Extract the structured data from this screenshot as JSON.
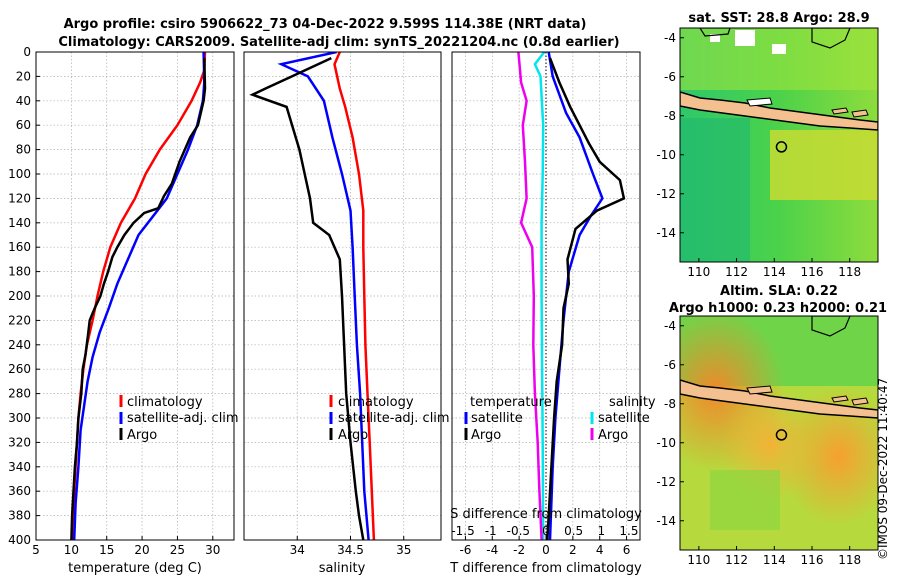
{
  "title_line1": "Argo profile: csiro 5906622_73 04-Dec-2022 9.599S 114.38E (NRT data)",
  "title_line2": "Climatology: CARS2009. Satellite-adj clim: synTS_20221204.nc (0.8d earlier)",
  "credit": "©IMOS 09-Dec-2022 11:40:47",
  "colors": {
    "climatology": "#ff0000",
    "satellite": "#0000ff",
    "argo": "#000000",
    "cyan": "#00e5ee",
    "magenta": "#ee00ee",
    "land": "#f5c08f"
  },
  "chart_data": [
    {
      "type": "line",
      "name": "temperature",
      "xlabel": "temperature (deg C)",
      "xlim": [
        5,
        33
      ],
      "ylim": [
        0,
        400
      ],
      "xticks": [
        "5",
        "10",
        "15",
        "20",
        "25",
        "30"
      ],
      "yticks": [
        "0",
        "20",
        "40",
        "60",
        "80",
        "100",
        "120",
        "140",
        "160",
        "180",
        "200",
        "220",
        "240",
        "260",
        "280",
        "300",
        "320",
        "340",
        "360",
        "380",
        "400"
      ],
      "legend": [
        "climatology",
        "satellite-adj. clim",
        "Argo"
      ],
      "series": [
        {
          "name": "climatology",
          "points": [
            [
              28.9,
              0
            ],
            [
              28.8,
              15
            ],
            [
              28.2,
              25
            ],
            [
              27,
              40
            ],
            [
              25,
              60
            ],
            [
              22.5,
              80
            ],
            [
              20.5,
              100
            ],
            [
              19,
              120
            ],
            [
              17,
              140
            ],
            [
              15.5,
              160
            ],
            [
              14.5,
              180
            ],
            [
              13.7,
              200
            ],
            [
              13,
              220
            ],
            [
              12.2,
              240
            ],
            [
              11.7,
              260
            ],
            [
              11.3,
              280
            ],
            [
              11,
              300
            ],
            [
              10.7,
              330
            ],
            [
              10.4,
              360
            ],
            [
              10.2,
              390
            ],
            [
              10.1,
              400
            ]
          ]
        },
        {
          "name": "satellite",
          "points": [
            [
              28.7,
              0
            ],
            [
              28.8,
              25
            ],
            [
              28.6,
              40
            ],
            [
              27.8,
              60
            ],
            [
              26.5,
              80
            ],
            [
              25,
              100
            ],
            [
              23.5,
              120
            ],
            [
              21.5,
              135
            ],
            [
              19.5,
              150
            ],
            [
              18,
              170
            ],
            [
              16.5,
              190
            ],
            [
              15.3,
              210
            ],
            [
              14,
              230
            ],
            [
              13,
              250
            ],
            [
              12.3,
              270
            ],
            [
              11.8,
              290
            ],
            [
              11.3,
              310
            ],
            [
              11,
              340
            ],
            [
              10.6,
              370
            ],
            [
              10.4,
              400
            ]
          ]
        },
        {
          "name": "Argo",
          "points": [
            [
              28.8,
              5
            ],
            [
              28.9,
              30
            ],
            [
              28.7,
              40
            ],
            [
              27.9,
              60
            ],
            [
              26.8,
              70
            ],
            [
              25.3,
              90
            ],
            [
              24.2,
              108
            ],
            [
              23.1,
              118
            ],
            [
              22.3,
              128
            ],
            [
              20.3,
              132
            ],
            [
              18.8,
              140
            ],
            [
              17.5,
              150
            ],
            [
              16.5,
              160
            ],
            [
              15.8,
              168
            ],
            [
              15.2,
              180
            ],
            [
              14.6,
              190
            ],
            [
              14.1,
              200
            ],
            [
              13.3,
              210
            ],
            [
              12.6,
              220
            ],
            [
              12.4,
              230
            ],
            [
              12,
              248
            ],
            [
              11.6,
              260
            ],
            [
              11.4,
              280
            ],
            [
              11,
              300
            ],
            [
              10.8,
              320
            ],
            [
              10.5,
              340
            ],
            [
              10.3,
              360
            ],
            [
              10.1,
              380
            ],
            [
              10,
              400
            ]
          ]
        }
      ]
    },
    {
      "type": "line",
      "name": "salinity",
      "xlabel": "salinity",
      "xlim": [
        33.5,
        35.35
      ],
      "ylim": [
        0,
        400
      ],
      "xticks": [
        "34",
        "34.5",
        "35"
      ],
      "legend": [
        "climatology",
        "satellite-adj. clim",
        "Argo"
      ],
      "series": [
        {
          "name": "climatology",
          "points": [
            [
              34.4,
              0
            ],
            [
              34.35,
              10
            ],
            [
              34.4,
              30
            ],
            [
              34.45,
              45
            ],
            [
              34.52,
              70
            ],
            [
              34.58,
              100
            ],
            [
              34.62,
              130
            ],
            [
              34.62,
              160
            ],
            [
              34.63,
              200
            ],
            [
              34.64,
              240
            ],
            [
              34.66,
              280
            ],
            [
              34.68,
              320
            ],
            [
              34.7,
              360
            ],
            [
              34.72,
              400
            ]
          ]
        },
        {
          "name": "satellite",
          "points": [
            [
              34.37,
              0
            ],
            [
              33.85,
              10
            ],
            [
              34.1,
              20
            ],
            [
              34.25,
              40
            ],
            [
              34.33,
              70
            ],
            [
              34.42,
              100
            ],
            [
              34.5,
              130
            ],
            [
              34.52,
              160
            ],
            [
              34.54,
              200
            ],
            [
              34.56,
              240
            ],
            [
              34.59,
              280
            ],
            [
              34.61,
              320
            ],
            [
              34.63,
              360
            ],
            [
              34.67,
              400
            ]
          ]
        },
        {
          "name": "Argo",
          "points": [
            [
              34.32,
              5
            ],
            [
              33.95,
              20
            ],
            [
              33.7,
              30
            ],
            [
              33.58,
              35
            ],
            [
              33.9,
              45
            ],
            [
              34.02,
              80
            ],
            [
              34.07,
              100
            ],
            [
              34.12,
              120
            ],
            [
              34.15,
              140
            ],
            [
              34.3,
              150
            ],
            [
              34.4,
              170
            ],
            [
              34.42,
              200
            ],
            [
              34.44,
              240
            ],
            [
              34.46,
              280
            ],
            [
              34.5,
              320
            ],
            [
              34.55,
              360
            ],
            [
              34.58,
              380
            ],
            [
              34.62,
              400
            ]
          ]
        }
      ]
    },
    {
      "type": "line",
      "name": "differences",
      "xlabel": "T difference from climatology",
      "x2label": "S difference from climatology",
      "xlim": [
        -7,
        7
      ],
      "ylim": [
        0,
        400
      ],
      "xticks": [
        "-6",
        "-4",
        "-2",
        "0",
        "2",
        "4",
        "6"
      ],
      "x2ticks": [
        "-1.5",
        "-1",
        "-0.5",
        "0",
        "0.5",
        "1",
        "1.5"
      ],
      "legend_left_title": "temperature",
      "legend_right_title": "salinity",
      "legend_left": [
        "satellite",
        "Argo"
      ],
      "legend_right": [
        "satellite",
        "Argo"
      ],
      "series": [
        {
          "name": "T satellite",
          "points": [
            [
              0.2,
              0
            ],
            [
              0.5,
              20
            ],
            [
              1.5,
              50
            ],
            [
              2.5,
              70
            ],
            [
              3.5,
              100
            ],
            [
              4.2,
              120
            ],
            [
              3.3,
              135
            ],
            [
              2.5,
              150
            ],
            [
              1.7,
              180
            ],
            [
              1.3,
              220
            ],
            [
              1,
              260
            ],
            [
              0.7,
              300
            ],
            [
              0.5,
              340
            ],
            [
              0.3,
              400
            ]
          ]
        },
        {
          "name": "T Argo",
          "points": [
            [
              0.3,
              5
            ],
            [
              1,
              25
            ],
            [
              1.8,
              45
            ],
            [
              2.5,
              60
            ],
            [
              3.2,
              75
            ],
            [
              4,
              90
            ],
            [
              5.5,
              105
            ],
            [
              5.8,
              120
            ],
            [
              3.8,
              130
            ],
            [
              2.2,
              145
            ],
            [
              1.6,
              170
            ],
            [
              1.7,
              190
            ],
            [
              1.3,
              210
            ],
            [
              1.2,
              240
            ],
            [
              0.8,
              270
            ],
            [
              0.6,
              300
            ],
            [
              0.4,
              340
            ],
            [
              0.2,
              380
            ],
            [
              0.1,
              400
            ]
          ]
        },
        {
          "name": "S satellite",
          "points": [
            [
              -0.03,
              0
            ],
            [
              -0.2,
              10
            ],
            [
              -0.1,
              20
            ],
            [
              -0.05,
              60
            ],
            [
              -0.06,
              100
            ],
            [
              -0.08,
              140
            ],
            [
              -0.08,
              200
            ],
            [
              -0.07,
              260
            ],
            [
              -0.06,
              320
            ],
            [
              -0.05,
              400
            ]
          ]
        },
        {
          "name": "S Argo",
          "points": [
            [
              -0.5,
              0
            ],
            [
              -0.45,
              25
            ],
            [
              -0.35,
              40
            ],
            [
              -0.42,
              60
            ],
            [
              -0.38,
              90
            ],
            [
              -0.35,
              120
            ],
            [
              -0.45,
              140
            ],
            [
              -0.25,
              160
            ],
            [
              -0.22,
              200
            ],
            [
              -0.23,
              240
            ],
            [
              -0.2,
              280
            ],
            [
              -0.15,
              320
            ],
            [
              -0.12,
              360
            ],
            [
              -0.08,
              400
            ]
          ]
        }
      ]
    },
    {
      "type": "heatmap",
      "name": "sst_map",
      "title": "sat. SST: 28.8 Argo: 28.9",
      "xlim": [
        109,
        119.5
      ],
      "ylim": [
        -15.5,
        -3.5
      ],
      "xticks": [
        "110",
        "112",
        "114",
        "116",
        "118"
      ],
      "yticks": [
        "-4",
        "-6",
        "-8",
        "-10",
        "-12",
        "-14"
      ],
      "marker": [
        114.38,
        -9.599
      ]
    },
    {
      "type": "heatmap",
      "name": "sla_map",
      "title": "Altim. SLA: 0.22",
      "subtitle": "Argo h1000: 0.23 h2000: 0.21",
      "xlim": [
        109,
        119.5
      ],
      "ylim": [
        -15.5,
        -3.5
      ],
      "xticks": [
        "110",
        "112",
        "114",
        "116",
        "118"
      ],
      "yticks": [
        "-4",
        "-6",
        "-8",
        "-10",
        "-12",
        "-14"
      ],
      "marker": [
        114.38,
        -9.599
      ]
    }
  ]
}
